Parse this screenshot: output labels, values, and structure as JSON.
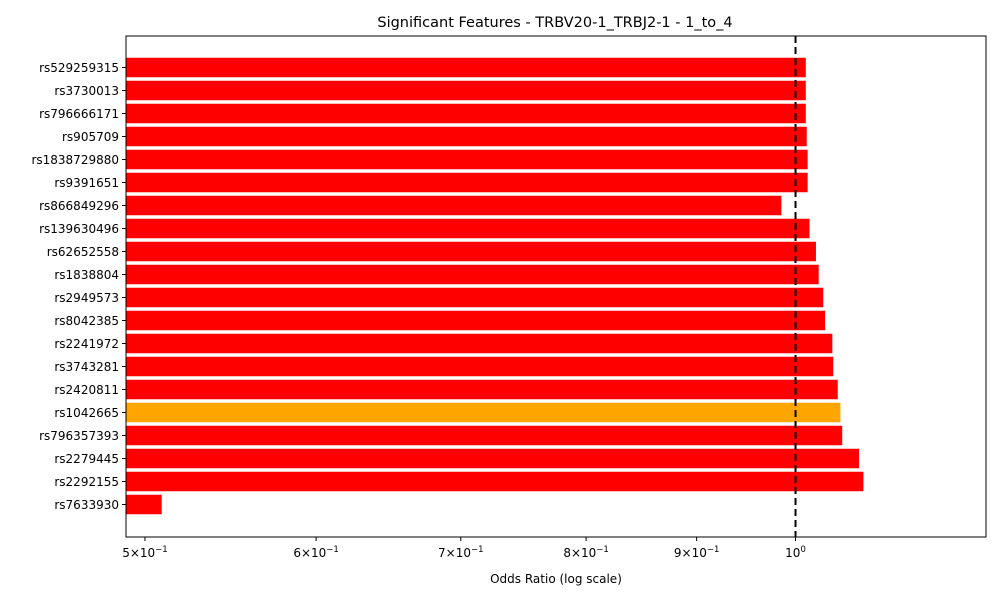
{
  "chart_data": {
    "type": "bar",
    "orientation": "horizontal",
    "title": "Significant Features - TRBV20-1_TRBJ2-1 - 1_to_4",
    "xlabel": "Odds Ratio (log scale)",
    "ylabel": "",
    "x_scale": "log",
    "xlim": [
      0.49,
      1.225
    ],
    "x_ticks": [
      {
        "value": 0.5,
        "base": "5×10",
        "exp": "−1"
      },
      {
        "value": 0.6,
        "base": "6×10",
        "exp": "−1"
      },
      {
        "value": 0.7,
        "base": "7×10",
        "exp": "−1"
      },
      {
        "value": 0.8,
        "base": "8×10",
        "exp": "−1"
      },
      {
        "value": 0.9,
        "base": "9×10",
        "exp": "−1"
      },
      {
        "value": 1.0,
        "base": "10",
        "exp": "0"
      }
    ],
    "reference_line": {
      "x": 1.0,
      "style": "dashed",
      "color": "#000000"
    },
    "grid": false,
    "categories": [
      "rs529259315",
      "rs3730013",
      "rs796666171",
      "rs905709",
      "rs1838729880",
      "rs9391651",
      "rs866849296",
      "rs139630496",
      "rs62652558",
      "rs1838804",
      "rs2949573",
      "rs8042385",
      "rs2241972",
      "rs3743281",
      "rs2420811",
      "rs1042665",
      "rs796357393",
      "rs2279445",
      "rs2292155",
      "rs7633930"
    ],
    "values": [
      1.011,
      1.011,
      1.011,
      1.012,
      1.013,
      1.013,
      0.985,
      1.015,
      1.022,
      1.025,
      1.03,
      1.032,
      1.04,
      1.041,
      1.046,
      1.049,
      1.051,
      1.07,
      1.075,
      0.509
    ],
    "colors": [
      "#ff0000",
      "#ff0000",
      "#ff0000",
      "#ff0000",
      "#ff0000",
      "#ff0000",
      "#ff0000",
      "#ff0000",
      "#ff0000",
      "#ff0000",
      "#ff0000",
      "#ff0000",
      "#ff0000",
      "#ff0000",
      "#ff0000",
      "#ffa500",
      "#ff0000",
      "#ff0000",
      "#ff0000",
      "#ff0000"
    ]
  }
}
